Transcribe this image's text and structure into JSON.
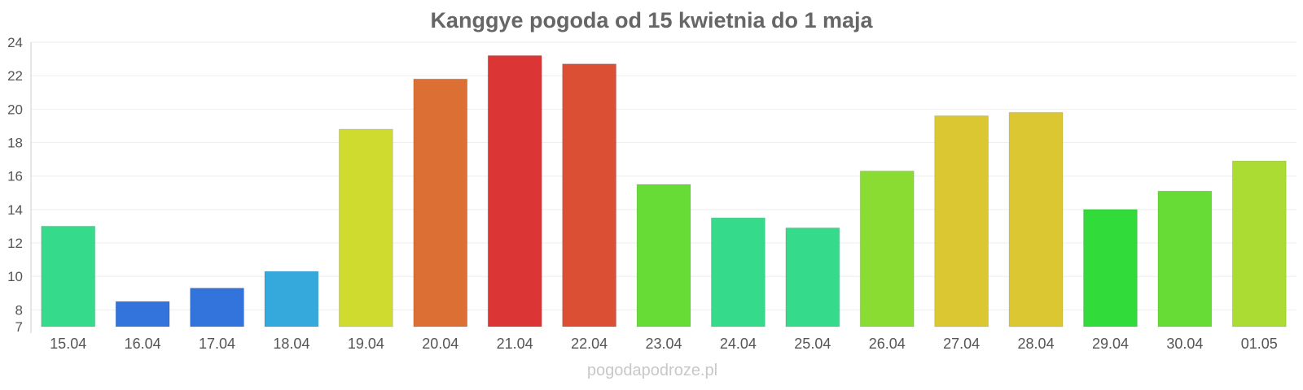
{
  "source": "pogodapodroze.pl",
  "chart_data": {
    "type": "bar",
    "title": "Kanggye pogoda od 15 kwietnia do 1 maja",
    "xlabel": "",
    "ylabel": "",
    "categories": [
      "15.04",
      "16.04",
      "17.04",
      "18.04",
      "19.04",
      "20.04",
      "21.04",
      "22.04",
      "23.04",
      "24.04",
      "25.04",
      "26.04",
      "27.04",
      "28.04",
      "29.04",
      "30.04",
      "01.05"
    ],
    "values": [
      13,
      8.5,
      9.3,
      10.3,
      18.8,
      21.8,
      23.2,
      22.7,
      15.5,
      13.5,
      12.9,
      16.3,
      19.6,
      19.8,
      14,
      15.1,
      16.9
    ],
    "colors": [
      "#36da8b",
      "#3373dc",
      "#3373dc",
      "#35a8dc",
      "#cfdc2f",
      "#dc7034",
      "#db3535",
      "#db5035",
      "#67dc36",
      "#36da8b",
      "#36da8b",
      "#8adc33",
      "#dbc732",
      "#dbc732",
      "#31dc3a",
      "#67dc36",
      "#abdc33"
    ],
    "ylim": [
      7,
      24
    ],
    "yticks": [
      7,
      8,
      10,
      12,
      14,
      16,
      18,
      20,
      22,
      24
    ],
    "grid": true,
    "legend": "none"
  }
}
